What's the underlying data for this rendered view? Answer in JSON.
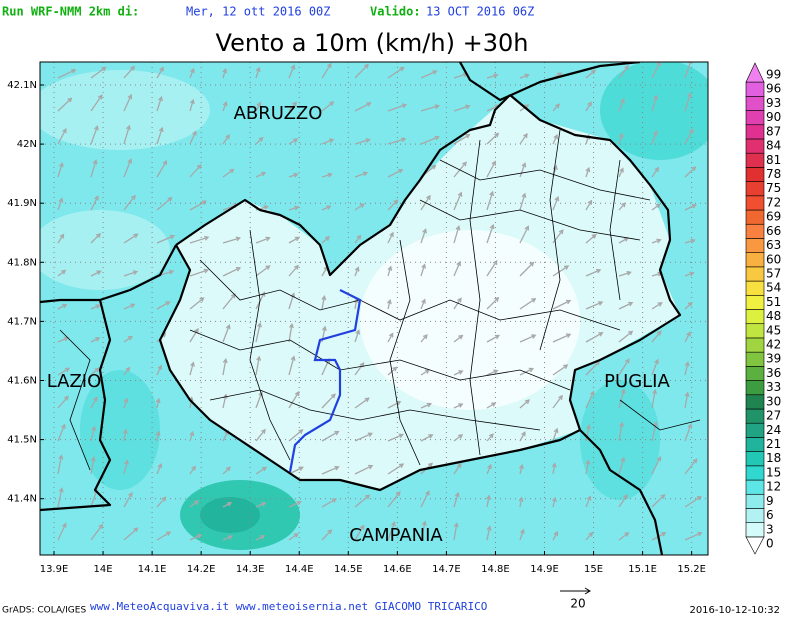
{
  "header": {
    "run_label": "Run WRF-NMM 2km di:",
    "run_date": "Mer, 12 ott 2016 00Z",
    "valid_label": "Valido:",
    "valid_date": "13 OCT 2016 06Z"
  },
  "title": "Vento a 10m (km/h) +30h",
  "map": {
    "lat_labels": [
      "42.1N",
      "42N",
      "41.9N",
      "41.8N",
      "41.7N",
      "41.6N",
      "41.5N",
      "41.4N"
    ],
    "lon_labels": [
      "13.9E",
      "14E",
      "14.1E",
      "14.2E",
      "14.3E",
      "14.4E",
      "14.5E",
      "14.6E",
      "14.7E",
      "14.8E",
      "14.9E",
      "15E",
      "15.1E",
      "15.2E"
    ],
    "regions": [
      "ABRUZZO",
      "LAZIO",
      "PUGLIA",
      "CAMPANIA"
    ]
  },
  "colorbar": {
    "levels": [
      0,
      3,
      6,
      9,
      12,
      15,
      18,
      21,
      24,
      27,
      30,
      33,
      36,
      39,
      42,
      45,
      48,
      51,
      54,
      57,
      60,
      63,
      66,
      69,
      72,
      75,
      78,
      81,
      84,
      87,
      90,
      93,
      96,
      99
    ],
    "colors": [
      "#ffffff",
      "#d4fafa",
      "#b2f2f2",
      "#8eecec",
      "#5ee6e6",
      "#30d8d0",
      "#22c8b4",
      "#20b49c",
      "#20a484",
      "#209468",
      "#208450",
      "#3c9c40",
      "#5cb040",
      "#80c440",
      "#a0d440",
      "#c0e440",
      "#dcf040",
      "#f0f040",
      "#f8e040",
      "#f8c840",
      "#f8b040",
      "#f89840",
      "#f88040",
      "#f06830",
      "#f05030",
      "#e84030",
      "#e03030",
      "#e03050",
      "#e03070",
      "#e03090",
      "#e040b0",
      "#e050c8",
      "#e060e0",
      "#f080f0"
    ]
  },
  "reference_vector": "20",
  "footer": {
    "credit": "GrADS: COLA/IGES",
    "sites": "www.MeteoAcquaviva.it www.meteoisernia.net GIACOMO TRICARICO",
    "timestamp": "2016-10-12-10:32"
  }
}
